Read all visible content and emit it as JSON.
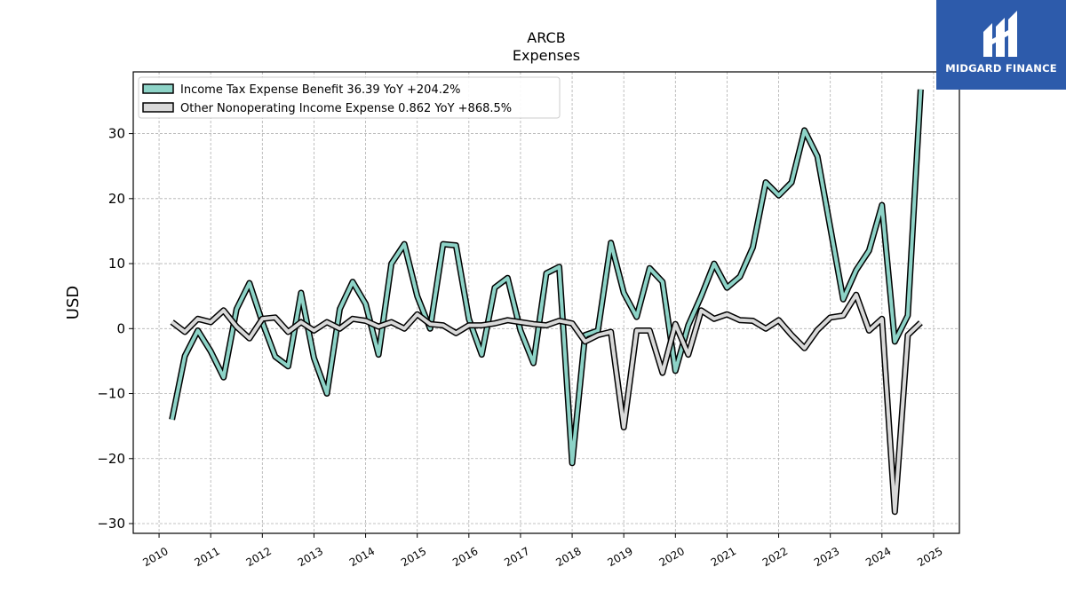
{
  "brand": {
    "name": "MIDGARD FINANCE",
    "color": "#2d5bab",
    "icon": "midgard-logo-icon"
  },
  "chart_data": {
    "type": "line",
    "title": "ARCB",
    "subtitle": "Expenses",
    "xlabel": "",
    "ylabel": "USD",
    "xlim": [
      2009.5,
      2025.5
    ],
    "ylim": [
      -31.5,
      39.5
    ],
    "grid": true,
    "legend_position": "top-left",
    "x_ticks": [
      "2010",
      "2011",
      "2012",
      "2013",
      "2014",
      "2015",
      "2016",
      "2017",
      "2018",
      "2019",
      "2020",
      "2021",
      "2022",
      "2023",
      "2024",
      "2025"
    ],
    "y_ticks": [
      -30,
      -20,
      -10,
      0,
      10,
      20,
      30
    ],
    "y_tick_labels": [
      "−30",
      "−20",
      "−10",
      "0",
      "10",
      "20",
      "30"
    ],
    "x": [
      2010.25,
      2010.5,
      2010.75,
      2011.0,
      2011.25,
      2011.5,
      2011.75,
      2012.0,
      2012.25,
      2012.5,
      2012.75,
      2013.0,
      2013.25,
      2013.5,
      2013.75,
      2014.0,
      2014.25,
      2014.5,
      2014.75,
      2015.0,
      2015.25,
      2015.5,
      2015.75,
      2016.0,
      2016.25,
      2016.5,
      2016.75,
      2017.0,
      2017.25,
      2017.5,
      2017.75,
      2018.0,
      2018.25,
      2018.5,
      2018.75,
      2019.0,
      2019.25,
      2019.5,
      2019.75,
      2020.0,
      2020.25,
      2020.5,
      2020.75,
      2021.0,
      2021.25,
      2021.5,
      2021.75,
      2022.0,
      2022.25,
      2022.5,
      2022.75,
      2023.0,
      2023.25,
      2023.5,
      2023.75,
      2024.0,
      2024.25,
      2024.5,
      2024.75
    ],
    "series": [
      {
        "name": "Income Tax Expense Benefit",
        "legend_label": "Income Tax Expense Benefit  36.39 YoY +204.2%",
        "color": "#8dd3c7",
        "values": [
          -14.0,
          -4.2,
          -0.3,
          -3.5,
          -7.5,
          3.0,
          7.0,
          1.0,
          -4.3,
          -5.8,
          5.5,
          -4.5,
          -10.0,
          3.0,
          7.2,
          3.8,
          -4.0,
          10.0,
          13.0,
          5.0,
          0.0,
          13.0,
          12.8,
          1.5,
          -4.0,
          6.3,
          7.8,
          -0.3,
          -5.3,
          8.5,
          9.5,
          -20.7,
          -1.0,
          -0.3,
          13.2,
          5.5,
          1.8,
          9.3,
          7.2,
          -6.5,
          0.5,
          5.0,
          10.0,
          6.3,
          8.0,
          12.5,
          22.5,
          20.5,
          22.5,
          30.5,
          26.5,
          15.5,
          4.5,
          9.0,
          12.0,
          19.0,
          -2.0,
          2.0,
          36.8
        ]
      },
      {
        "name": "Other Nonoperating Income Expense",
        "legend_label": "Other Nonoperating Income Expense  0.862 YoY +868.5%",
        "color": "#d9d9d9",
        "values": [
          1.0,
          -0.5,
          1.5,
          1.0,
          2.8,
          0.3,
          -1.5,
          1.5,
          1.7,
          -0.5,
          1.0,
          -0.3,
          1.0,
          0.0,
          1.5,
          1.2,
          0.3,
          1.0,
          0.0,
          2.2,
          0.7,
          0.5,
          -0.7,
          0.5,
          0.5,
          0.8,
          1.3,
          1.0,
          0.7,
          0.5,
          1.2,
          0.8,
          -2.0,
          -1.0,
          -0.5,
          -15.2,
          -0.3,
          -0.3,
          -6.8,
          0.7,
          -4.0,
          2.8,
          1.5,
          2.2,
          1.3,
          1.2,
          0.0,
          1.3,
          -1.0,
          -3.0,
          -0.2,
          1.7,
          2.0,
          5.2,
          -0.3,
          1.5,
          -28.2,
          -1.0,
          0.9
        ]
      }
    ]
  }
}
